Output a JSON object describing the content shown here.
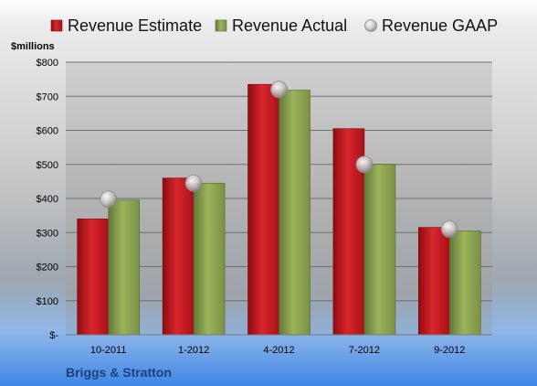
{
  "chart_data": {
    "type": "bar",
    "categories": [
      "10-2011",
      "1-2012",
      "4-2012",
      "7-2012",
      "9-2012"
    ],
    "series": [
      {
        "name": "Revenue Estimate",
        "kind": "bar",
        "color": "#c0161c",
        "values": [
          340,
          460,
          735,
          605,
          315
        ]
      },
      {
        "name": "Revenue Actual",
        "kind": "bar",
        "color": "#8aa04a",
        "values": [
          395,
          445,
          718,
          500,
          305
        ]
      },
      {
        "name": "Revenue GAAP",
        "kind": "marker",
        "color": "#c8c8c8",
        "values": [
          398,
          445,
          720,
          500,
          310
        ]
      }
    ],
    "ylabel": "$millions",
    "ylim": [
      0,
      800
    ],
    "yticks": [
      0,
      100,
      200,
      300,
      400,
      500,
      600,
      700,
      800
    ],
    "ytick_labels": [
      "$-",
      "$100",
      "$200",
      "$300",
      "$400",
      "$500",
      "$600",
      "$700",
      "$800"
    ],
    "grid": true,
    "legend": "top"
  },
  "company": "Briggs & Stratton"
}
